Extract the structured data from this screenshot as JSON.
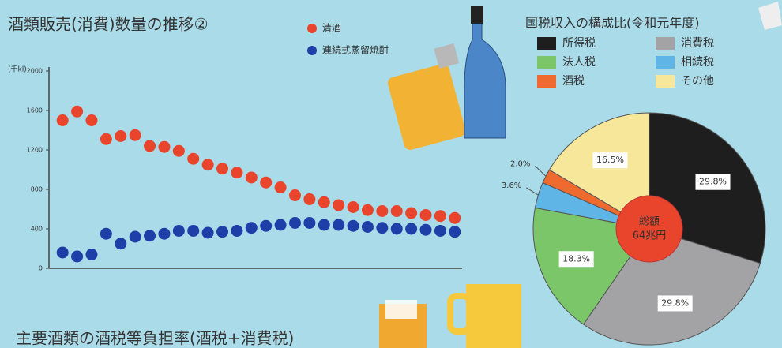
{
  "chart_data": [
    {
      "type": "dot",
      "title": "酒類販売(消費)数量の推移②",
      "y_label": "(千kl)",
      "categories": [
        null,
        null,
        null,
        null,
        null,
        null,
        null,
        null,
        null,
        null,
        null,
        null,
        null,
        null,
        null,
        null,
        null,
        null,
        null,
        null,
        null,
        null,
        null,
        null,
        null,
        null,
        null,
        null
      ],
      "series": [
        {
          "name": "清酒",
          "color": "#e8452c",
          "values": [
            1500,
            1590,
            1500,
            1310,
            1340,
            1350,
            1240,
            1230,
            1190,
            1110,
            1050,
            1010,
            970,
            920,
            870,
            820,
            740,
            700,
            670,
            640,
            620,
            590,
            580,
            580,
            560,
            540,
            530,
            510
          ]
        },
        {
          "name": "連続式蒸留焼酎",
          "color": "#1f3fa8",
          "values": [
            160,
            120,
            140,
            350,
            250,
            320,
            330,
            350,
            380,
            380,
            360,
            370,
            380,
            410,
            430,
            440,
            460,
            460,
            440,
            440,
            430,
            420,
            410,
            400,
            400,
            390,
            380,
            370
          ]
        }
      ],
      "ylim": [
        0,
        2000
      ],
      "yticks": [
        0,
        400,
        800,
        1200,
        1600,
        2000
      ]
    },
    {
      "type": "pie",
      "title": "国税収入の構成比(令和元年度)",
      "categories": [
        "所得税",
        "消費税",
        "法人税",
        "相続税",
        "酒税",
        "その他"
      ],
      "values": [
        29.8,
        29.8,
        18.3,
        3.6,
        2.0,
        16.5
      ],
      "value_labels": [
        "29.8%",
        "29.8%",
        "18.3%",
        "3.6%",
        "2.0%",
        "16.5%"
      ],
      "colors": [
        "#1e1e1e",
        "#a3a3a6",
        "#7cc66a",
        "#5fb6e6",
        "#ef6a2e",
        "#f7e79a"
      ],
      "center_label": [
        "総額",
        "64兆円"
      ]
    }
  ],
  "footer_title": "主要酒類の酒税等負担率(酒税+消費税)"
}
